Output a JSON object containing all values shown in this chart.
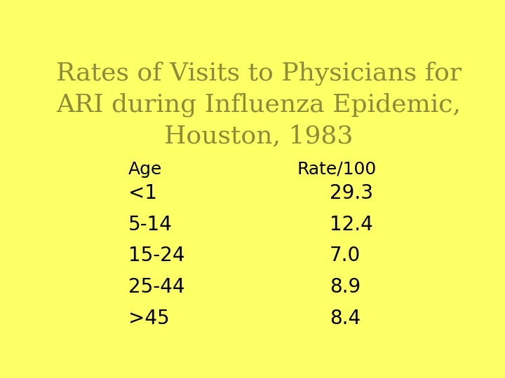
{
  "title_line1": "Rates of Visits to Physicians for",
  "title_line2": "ARI during Influenza Epidemic,",
  "title_line3": "Houston, 1983",
  "title_color": "#8B8B3A",
  "background_color": "#FFFF66",
  "col_header_age": "Age",
  "col_header_rate": "Rate/100",
  "ages": [
    "<1",
    "5-14",
    "15-24",
    "25-44",
    ">45"
  ],
  "rates": [
    "29.3",
    "12.4",
    "7.0",
    "8.9",
    "8.4"
  ],
  "table_text_color": "#000000",
  "header_text_color": "#000000",
  "title_fontsize": 26,
  "table_fontsize": 20,
  "header_fontsize": 18
}
